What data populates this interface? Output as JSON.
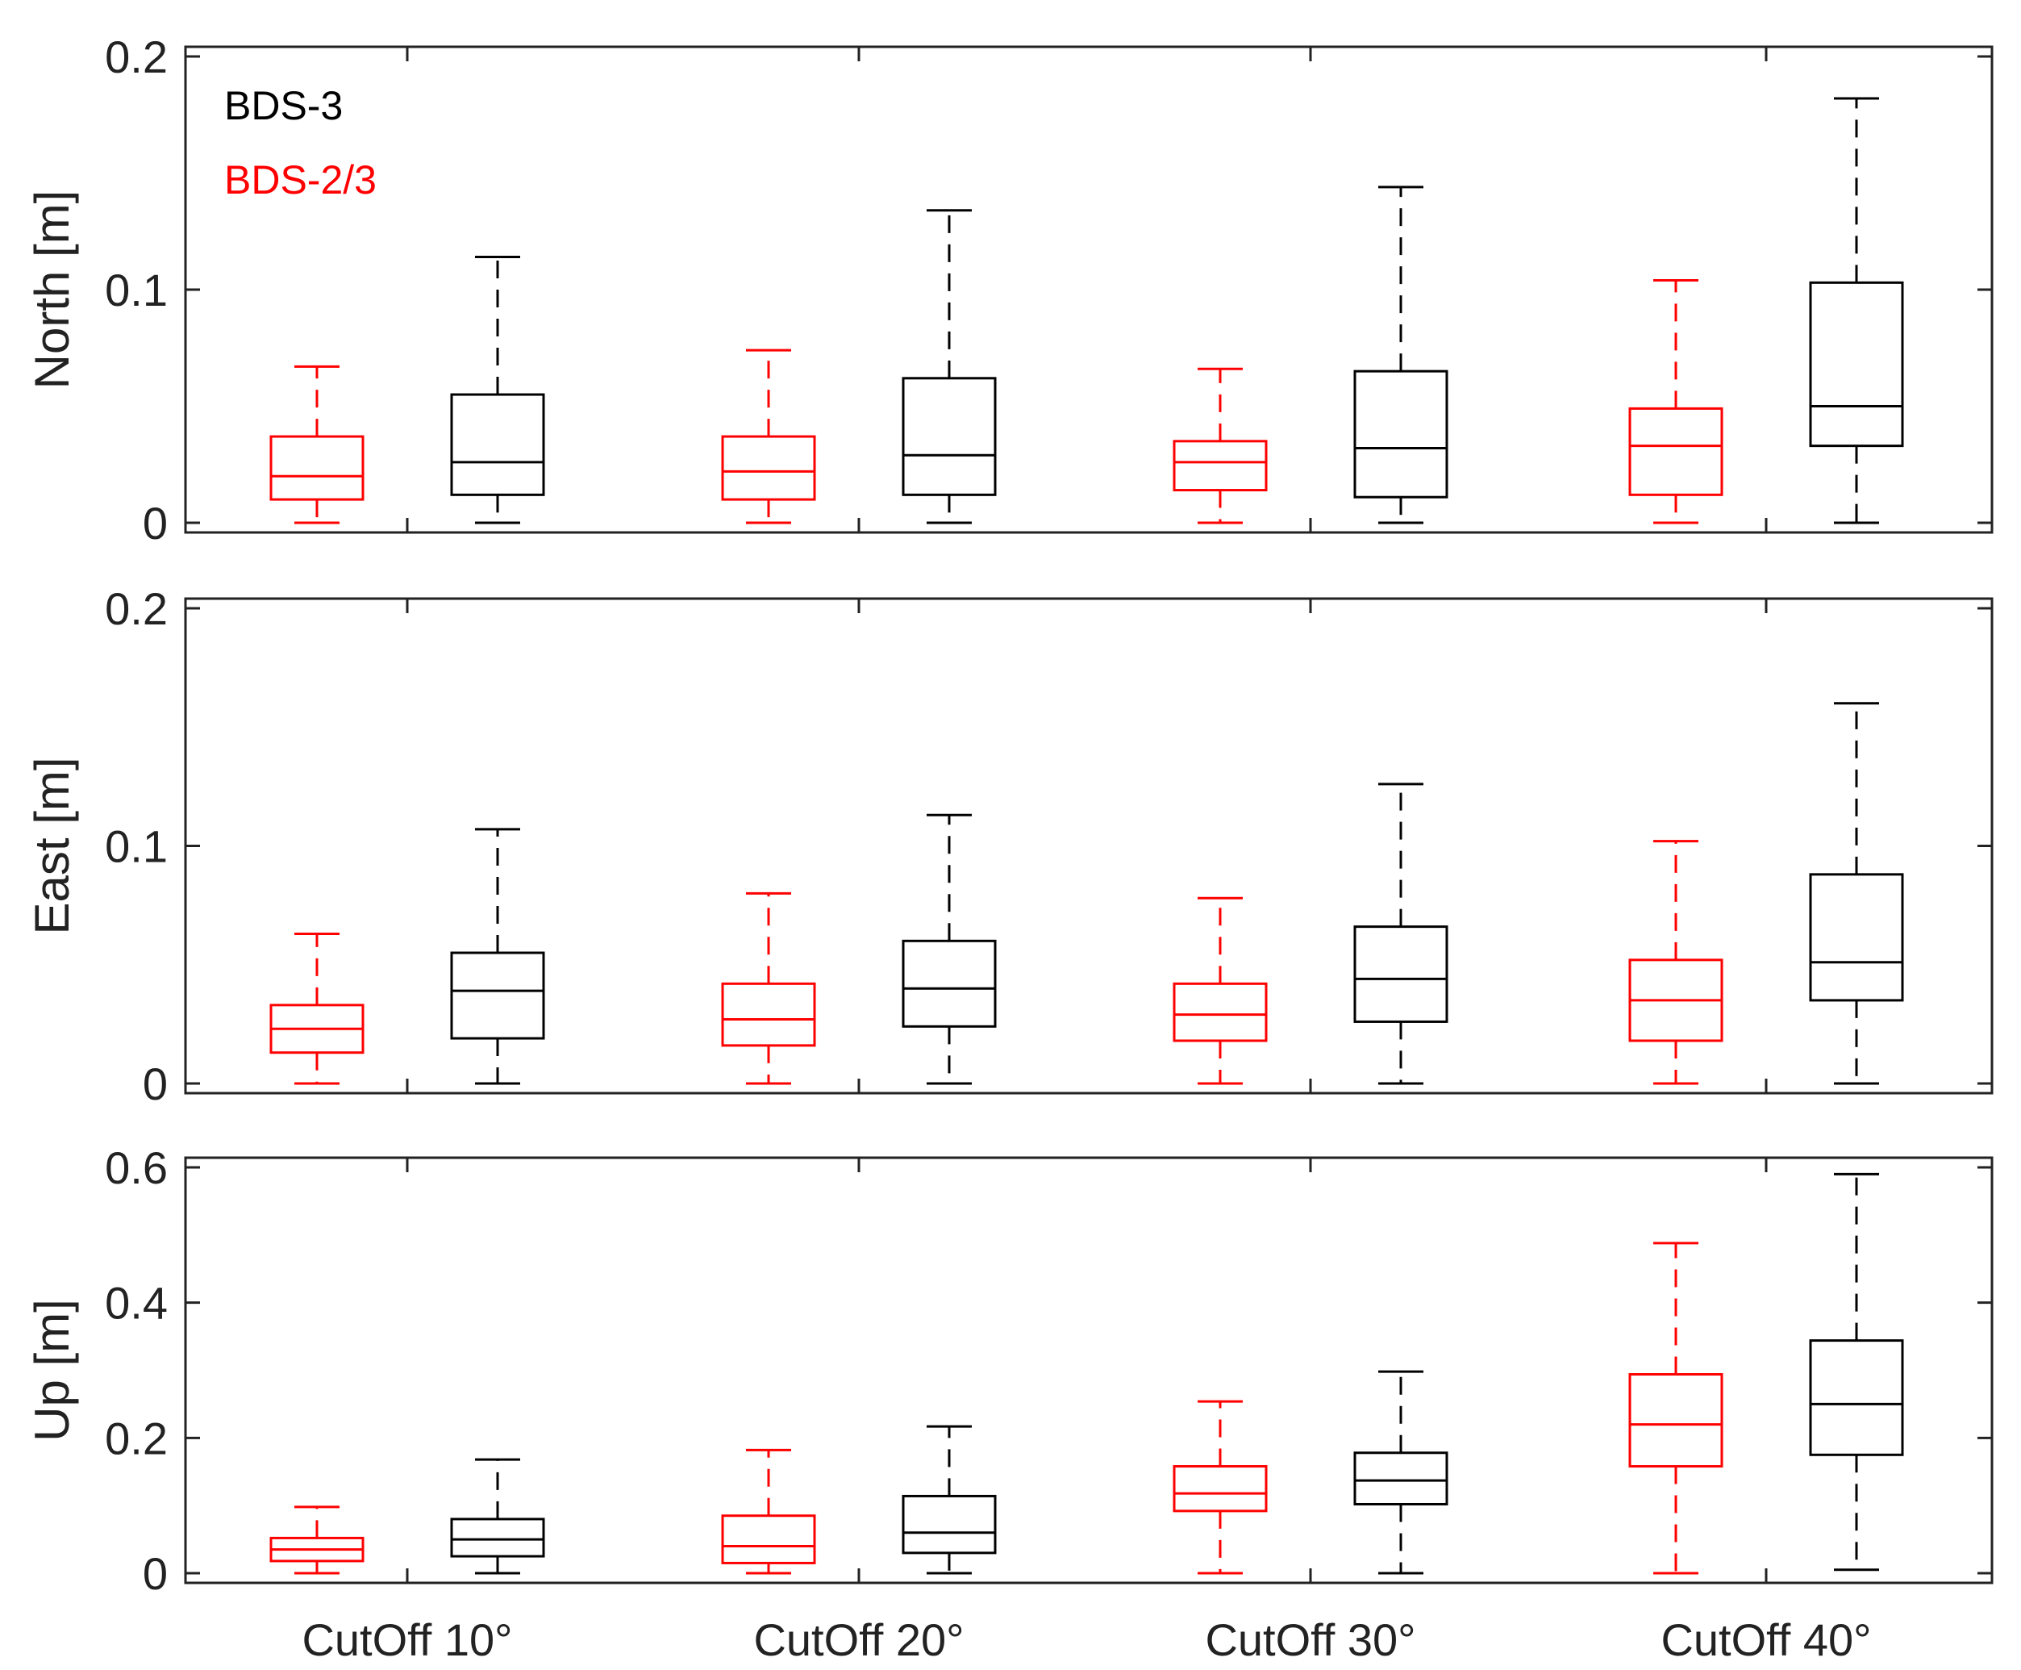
{
  "legend": {
    "position": "top-left",
    "entries": [
      {
        "label": "BDS-3",
        "color": "#000000"
      },
      {
        "label": "BDS-2/3",
        "color": "#ff0000"
      }
    ]
  },
  "chart_data": [
    {
      "type": "box",
      "ylabel": "North [m]",
      "ylim": [
        0,
        0.2
      ],
      "yticks": [
        0,
        0.1,
        0.2
      ],
      "ytick_labels": [
        "0",
        "0.1",
        "0.2"
      ],
      "show_xtick_labels": false,
      "categories": [
        "CutOff 10°",
        "CutOff 20°",
        "CutOff 30°",
        "CutOff 40°"
      ],
      "series": [
        {
          "name": "BDS-2/3",
          "color": "#ff0000",
          "boxes": [
            {
              "min": 0.0,
              "q1": 0.01,
              "median": 0.02,
              "q3": 0.037,
              "max": 0.067
            },
            {
              "min": 0.0,
              "q1": 0.01,
              "median": 0.022,
              "q3": 0.037,
              "max": 0.074
            },
            {
              "min": 0.0,
              "q1": 0.014,
              "median": 0.026,
              "q3": 0.035,
              "max": 0.066
            },
            {
              "min": 0.0,
              "q1": 0.012,
              "median": 0.033,
              "q3": 0.049,
              "max": 0.104
            }
          ]
        },
        {
          "name": "BDS-3",
          "color": "#000000",
          "boxes": [
            {
              "min": 0.0,
              "q1": 0.012,
              "median": 0.026,
              "q3": 0.055,
              "max": 0.114
            },
            {
              "min": 0.0,
              "q1": 0.012,
              "median": 0.029,
              "q3": 0.062,
              "max": 0.134
            },
            {
              "min": 0.0,
              "q1": 0.011,
              "median": 0.032,
              "q3": 0.065,
              "max": 0.144
            },
            {
              "min": 0.0,
              "q1": 0.033,
              "median": 0.05,
              "q3": 0.103,
              "max": 0.182
            }
          ]
        }
      ]
    },
    {
      "type": "box",
      "ylabel": "East [m]",
      "ylim": [
        0,
        0.2
      ],
      "yticks": [
        0,
        0.1,
        0.2
      ],
      "ytick_labels": [
        "0",
        "0.1",
        "0.2"
      ],
      "show_xtick_labels": false,
      "categories": [
        "CutOff 10°",
        "CutOff 20°",
        "CutOff 30°",
        "CutOff 40°"
      ],
      "series": [
        {
          "name": "BDS-2/3",
          "color": "#ff0000",
          "boxes": [
            {
              "min": 0.0,
              "q1": 0.013,
              "median": 0.023,
              "q3": 0.033,
              "max": 0.063
            },
            {
              "min": 0.0,
              "q1": 0.016,
              "median": 0.027,
              "q3": 0.042,
              "max": 0.08
            },
            {
              "min": 0.0,
              "q1": 0.018,
              "median": 0.029,
              "q3": 0.042,
              "max": 0.078
            },
            {
              "min": 0.0,
              "q1": 0.018,
              "median": 0.035,
              "q3": 0.052,
              "max": 0.102
            }
          ]
        },
        {
          "name": "BDS-3",
          "color": "#000000",
          "boxes": [
            {
              "min": 0.0,
              "q1": 0.019,
              "median": 0.039,
              "q3": 0.055,
              "max": 0.107
            },
            {
              "min": 0.0,
              "q1": 0.024,
              "median": 0.04,
              "q3": 0.06,
              "max": 0.113
            },
            {
              "min": 0.0,
              "q1": 0.026,
              "median": 0.044,
              "q3": 0.066,
              "max": 0.126
            },
            {
              "min": 0.0,
              "q1": 0.035,
              "median": 0.051,
              "q3": 0.088,
              "max": 0.16
            }
          ]
        }
      ]
    },
    {
      "type": "box",
      "ylabel": "Up [m]",
      "ylim": [
        0,
        0.6
      ],
      "yticks": [
        0,
        0.2,
        0.4,
        0.6
      ],
      "ytick_labels": [
        "0",
        "0.2",
        "0.4",
        "0.6"
      ],
      "show_xtick_labels": true,
      "categories": [
        "CutOff 10°",
        "CutOff 20°",
        "CutOff 30°",
        "CutOff 40°"
      ],
      "series": [
        {
          "name": "BDS-2/3",
          "color": "#ff0000",
          "boxes": [
            {
              "min": 0.0,
              "q1": 0.018,
              "median": 0.035,
              "q3": 0.052,
              "max": 0.098
            },
            {
              "min": 0.0,
              "q1": 0.015,
              "median": 0.04,
              "q3": 0.085,
              "max": 0.182
            },
            {
              "min": 0.0,
              "q1": 0.092,
              "median": 0.118,
              "q3": 0.158,
              "max": 0.254
            },
            {
              "min": 0.0,
              "q1": 0.158,
              "median": 0.22,
              "q3": 0.294,
              "max": 0.488
            }
          ]
        },
        {
          "name": "BDS-3",
          "color": "#000000",
          "boxes": [
            {
              "min": 0.0,
              "q1": 0.025,
              "median": 0.05,
              "q3": 0.08,
              "max": 0.168
            },
            {
              "min": 0.0,
              "q1": 0.03,
              "median": 0.06,
              "q3": 0.114,
              "max": 0.217
            },
            {
              "min": 0.0,
              "q1": 0.102,
              "median": 0.137,
              "q3": 0.178,
              "max": 0.298
            },
            {
              "min": 0.005,
              "q1": 0.175,
              "median": 0.25,
              "q3": 0.344,
              "max": 0.59
            }
          ]
        }
      ]
    }
  ]
}
